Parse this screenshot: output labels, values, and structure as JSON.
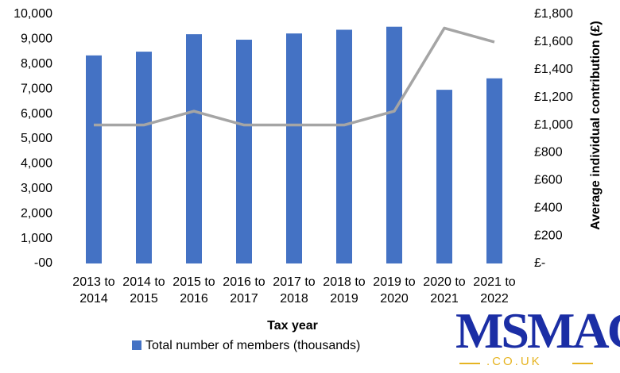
{
  "chart_data": {
    "type": "bar",
    "x_label": "Tax year",
    "y2_label": "Average individual contribution (£)",
    "categories": [
      "2013 to 2014",
      "2014 to 2015",
      "2015 to 2016",
      "2016 to 2017",
      "2017 to 2018",
      "2018 to 2019",
      "2019 to 2020",
      "2020 to 2021",
      "2021 to 2022"
    ],
    "series": [
      {
        "name": "Total number of members (thousands)",
        "type": "bar",
        "color": "#4472c4",
        "values": [
          8350,
          8500,
          9200,
          8980,
          9230,
          9380,
          9500,
          6970,
          7430
        ]
      },
      {
        "type": "line",
        "axis": "y2",
        "color": "#a5a5a5",
        "values": [
          1000,
          1000,
          1100,
          1000,
          1000,
          1000,
          1100,
          1700,
          1600
        ]
      }
    ],
    "ylim": [
      0,
      10000
    ],
    "yticks": [
      {
        "value": 0,
        "label": "-00"
      },
      {
        "value": 1000,
        "label": "1,000"
      },
      {
        "value": 2000,
        "label": "2,000"
      },
      {
        "value": 3000,
        "label": "3,000"
      },
      {
        "value": 4000,
        "label": "4,000"
      },
      {
        "value": 5000,
        "label": "5,000"
      },
      {
        "value": 6000,
        "label": "6,000"
      },
      {
        "value": 7000,
        "label": "7,000"
      },
      {
        "value": 8000,
        "label": "8,000"
      },
      {
        "value": 9000,
        "label": "9,000"
      },
      {
        "value": 10000,
        "label": "10,000"
      }
    ],
    "y2lim": [
      0,
      1800
    ],
    "y2ticks": [
      {
        "value": 0,
        "label": "£-"
      },
      {
        "value": 200,
        "label": "£200"
      },
      {
        "value": 400,
        "label": "£400"
      },
      {
        "value": 600,
        "label": "£600"
      },
      {
        "value": 800,
        "label": "£800"
      },
      {
        "value": 1000,
        "label": "£1,000"
      },
      {
        "value": 1200,
        "label": "£1,200"
      },
      {
        "value": 1400,
        "label": "£1,400"
      },
      {
        "value": 1600,
        "label": "£1,600"
      },
      {
        "value": 1800,
        "label": "£1,800"
      }
    ],
    "legend": "bottom"
  },
  "logo": {
    "name": "MSMAC",
    "domain": ".CO.UK"
  }
}
